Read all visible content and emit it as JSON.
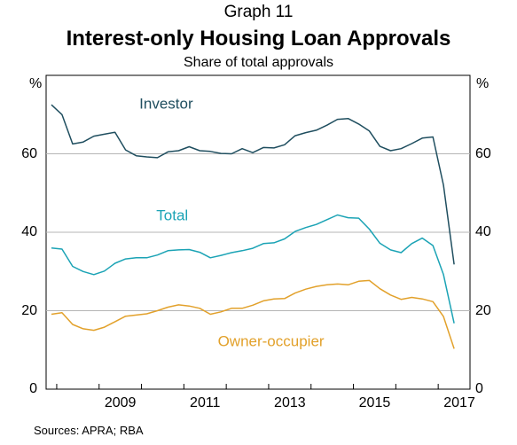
{
  "graph_number": "Graph 11",
  "chart_data": {
    "type": "line",
    "title": "Interest-only Housing Loan Approvals",
    "subtitle": "Share of total approvals",
    "ylabel_left": "%",
    "ylabel_right": "%",
    "ylim": [
      0,
      80
    ],
    "yticks": [
      0,
      20,
      40,
      60
    ],
    "xlim": [
      2007.75,
      2017.75
    ],
    "xticks": [
      "2009",
      "2011",
      "2013",
      "2015",
      "2017"
    ],
    "grid": "horizontal",
    "x": [
      2007.875,
      2008.125,
      2008.375,
      2008.625,
      2008.875,
      2009.125,
      2009.375,
      2009.625,
      2009.875,
      2010.125,
      2010.375,
      2010.625,
      2010.875,
      2011.125,
      2011.375,
      2011.625,
      2011.875,
      2012.125,
      2012.375,
      2012.625,
      2012.875,
      2013.125,
      2013.375,
      2013.625,
      2013.875,
      2014.125,
      2014.375,
      2014.625,
      2014.875,
      2015.125,
      2015.375,
      2015.625,
      2015.875,
      2016.125,
      2016.375,
      2016.625,
      2016.875,
      2017.125,
      2017.375
    ],
    "series": [
      {
        "name": "Investor",
        "color": "#1f4e5f",
        "values": [
          72.5,
          70,
          62.5,
          63,
          64.5,
          65,
          65.5,
          61,
          59.5,
          59.2,
          59,
          60.5,
          60.8,
          61.8,
          60.8,
          60.6,
          60.1,
          60,
          61.3,
          60.3,
          61.6,
          61.5,
          62.3,
          64.6,
          65.4,
          66,
          67.3,
          68.8,
          69,
          67.6,
          65.8,
          61.9,
          60.8,
          61.3,
          62.6,
          64,
          64.3,
          52,
          31.8
        ]
      },
      {
        "name": "Total",
        "color": "#1ba3b5",
        "values": [
          36,
          35.7,
          31.3,
          30,
          29.2,
          30.1,
          32.1,
          33.2,
          33.5,
          33.5,
          34.2,
          35.3,
          35.5,
          35.6,
          34.9,
          33.5,
          34.1,
          34.8,
          35.3,
          35.9,
          37.1,
          37.3,
          38.3,
          40.2,
          41.2,
          42,
          43.2,
          44.4,
          43.7,
          43.6,
          40.8,
          37.2,
          35.5,
          34.8,
          37.1,
          38.5,
          36.6,
          29.2,
          16.8
        ]
      },
      {
        "name": "Owner-occupier",
        "color": "#e2a12b",
        "values": [
          19.1,
          19.5,
          16.5,
          15.4,
          15,
          15.8,
          17.2,
          18.6,
          18.9,
          19.2,
          20,
          20.9,
          21.5,
          21.2,
          20.6,
          19.1,
          19.7,
          20.6,
          20.6,
          21.4,
          22.5,
          23,
          23.1,
          24.5,
          25.5,
          26.2,
          26.6,
          26.8,
          26.6,
          27.5,
          27.7,
          25.6,
          24,
          22.9,
          23.4,
          23,
          22.3,
          18.5,
          10.3
        ]
      }
    ],
    "annotations": [
      "Investor",
      "Total",
      "Owner-occupier"
    ]
  },
  "sources": "Sources:   APRA; RBA"
}
